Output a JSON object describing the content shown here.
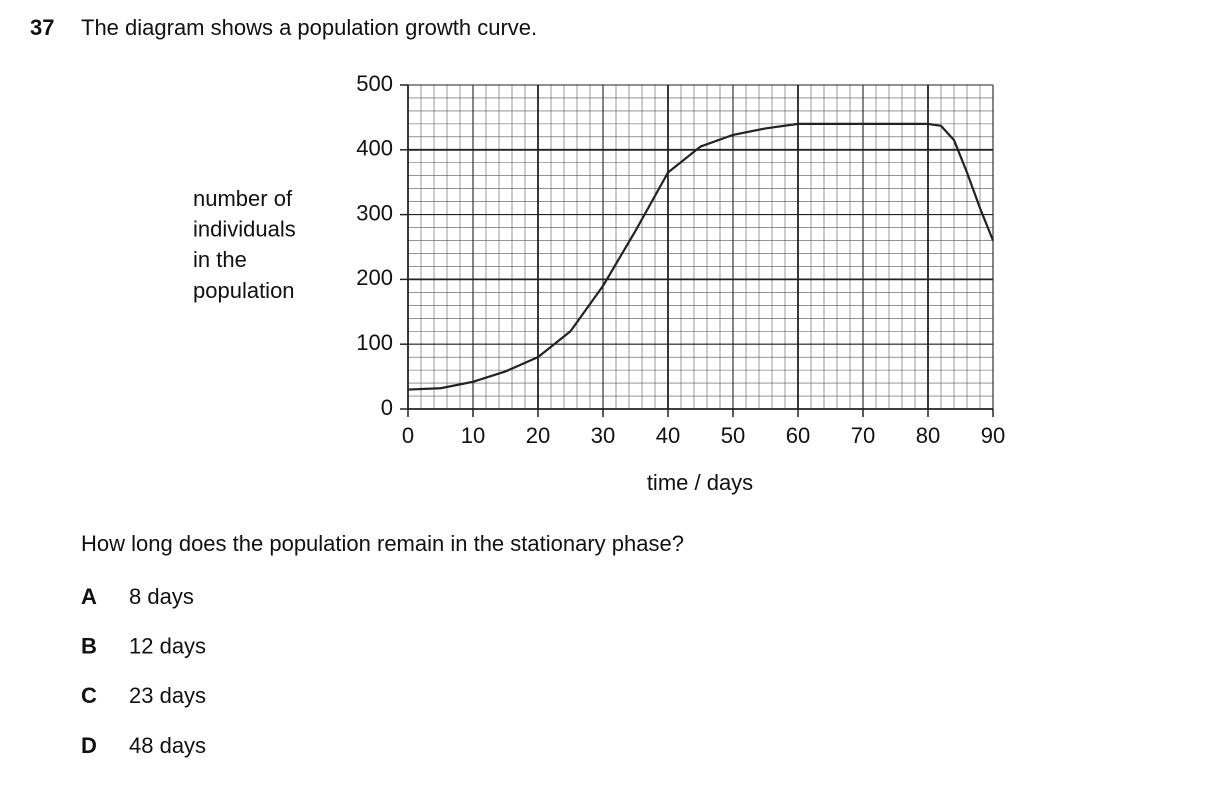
{
  "question_number": "37",
  "intro": "The diagram shows a population growth curve.",
  "chart_data": {
    "type": "line",
    "ylabel_lines": [
      "number of",
      "individuals",
      "in the",
      "population"
    ],
    "xlabel": "time / days",
    "x": [
      0,
      5,
      10,
      15,
      20,
      25,
      30,
      35,
      40,
      45,
      50,
      55,
      60,
      70,
      80,
      82,
      84,
      86,
      88,
      90
    ],
    "series": [
      {
        "color": "#222222",
        "values": [
          30,
          32,
          42,
          58,
          80,
          120,
          190,
          275,
          365,
          405,
          423,
          433,
          440,
          440,
          440,
          437,
          415,
          365,
          310,
          260
        ]
      }
    ],
    "xlim": [
      0,
      90
    ],
    "ylim": [
      0,
      500
    ],
    "xticks": [
      0,
      10,
      20,
      30,
      40,
      50,
      60,
      70,
      80,
      90
    ],
    "yticks": [
      0,
      100,
      200,
      300,
      400,
      500
    ],
    "grid": true
  },
  "question": "How long does the population remain in the stationary phase?",
  "options": [
    {
      "letter": "A",
      "text": "8 days"
    },
    {
      "letter": "B",
      "text": "12 days"
    },
    {
      "letter": "C",
      "text": "23 days"
    },
    {
      "letter": "D",
      "text": "48 days"
    }
  ]
}
